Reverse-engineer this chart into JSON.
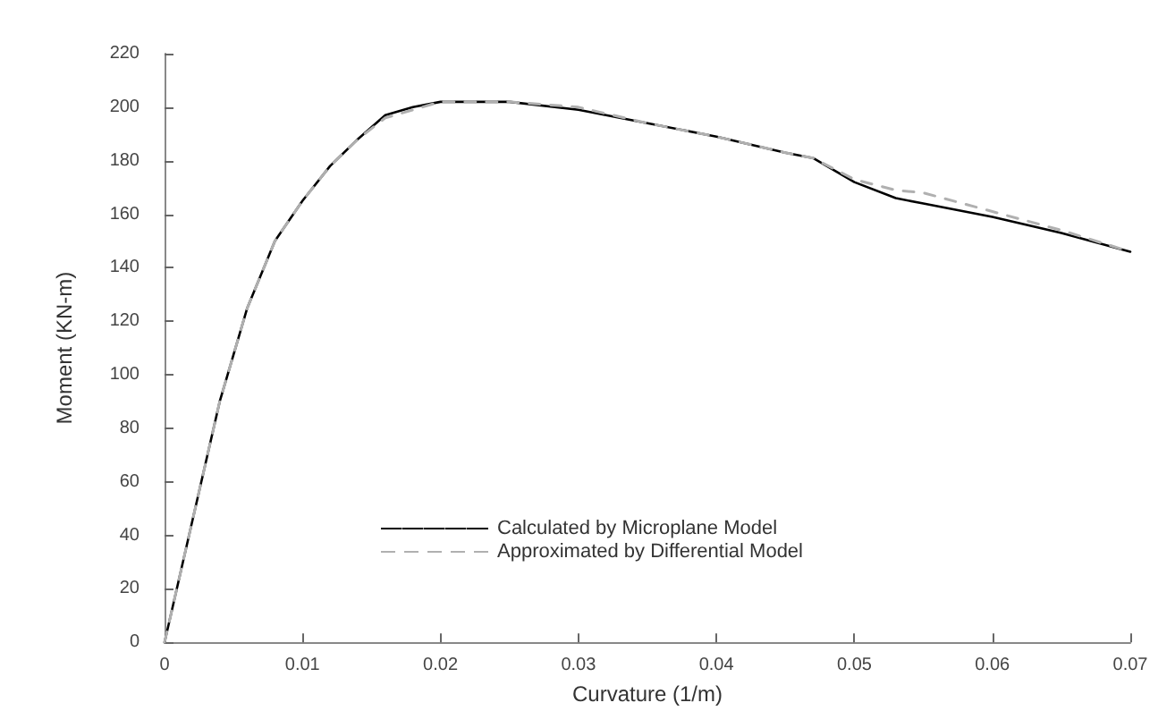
{
  "chart_data": {
    "type": "line",
    "xlabel": "Curvature (1/m)",
    "ylabel": "Moment (KN-m)",
    "xlim": [
      0,
      0.07
    ],
    "xticks": [
      0,
      0.01,
      0.02,
      0.03,
      0.04,
      0.05,
      0.06,
      0.07
    ],
    "ylim": [
      0,
      220
    ],
    "yticks": [
      0,
      20,
      40,
      60,
      80,
      100,
      120,
      140,
      160,
      180,
      200,
      220
    ],
    "grid": false,
    "legend": "bottom",
    "marker": "none",
    "series": [
      {
        "name": "Calculated by Microplane Model",
        "color": "#000000",
        "line_style": "solid",
        "x": [
          0,
          0.002,
          0.004,
          0.006,
          0.008,
          0.01,
          0.012,
          0.014,
          0.016,
          0.018,
          0.02,
          0.025,
          0.03,
          0.035,
          0.04,
          0.045,
          0.047,
          0.05,
          0.053,
          0.055,
          0.06,
          0.065,
          0.07
        ],
        "values": [
          0,
          45,
          90,
          125,
          150,
          165,
          178,
          188,
          197,
          200,
          202,
          202,
          199,
          194,
          189,
          183,
          181,
          172,
          166,
          164,
          159,
          153,
          146
        ]
      },
      {
        "name": "Approximated by Differential Model",
        "color": "#b0b0b0",
        "line_style": "dashed",
        "x": [
          0,
          0.002,
          0.004,
          0.006,
          0.008,
          0.01,
          0.012,
          0.014,
          0.016,
          0.018,
          0.02,
          0.025,
          0.03,
          0.035,
          0.04,
          0.045,
          0.047,
          0.05,
          0.053,
          0.055,
          0.06,
          0.065,
          0.07
        ],
        "values": [
          0,
          45,
          90,
          125,
          150,
          165,
          178,
          188,
          196,
          199,
          202,
          202,
          200,
          194,
          189,
          183,
          181,
          173,
          169,
          168,
          161,
          154,
          146
        ]
      }
    ]
  }
}
